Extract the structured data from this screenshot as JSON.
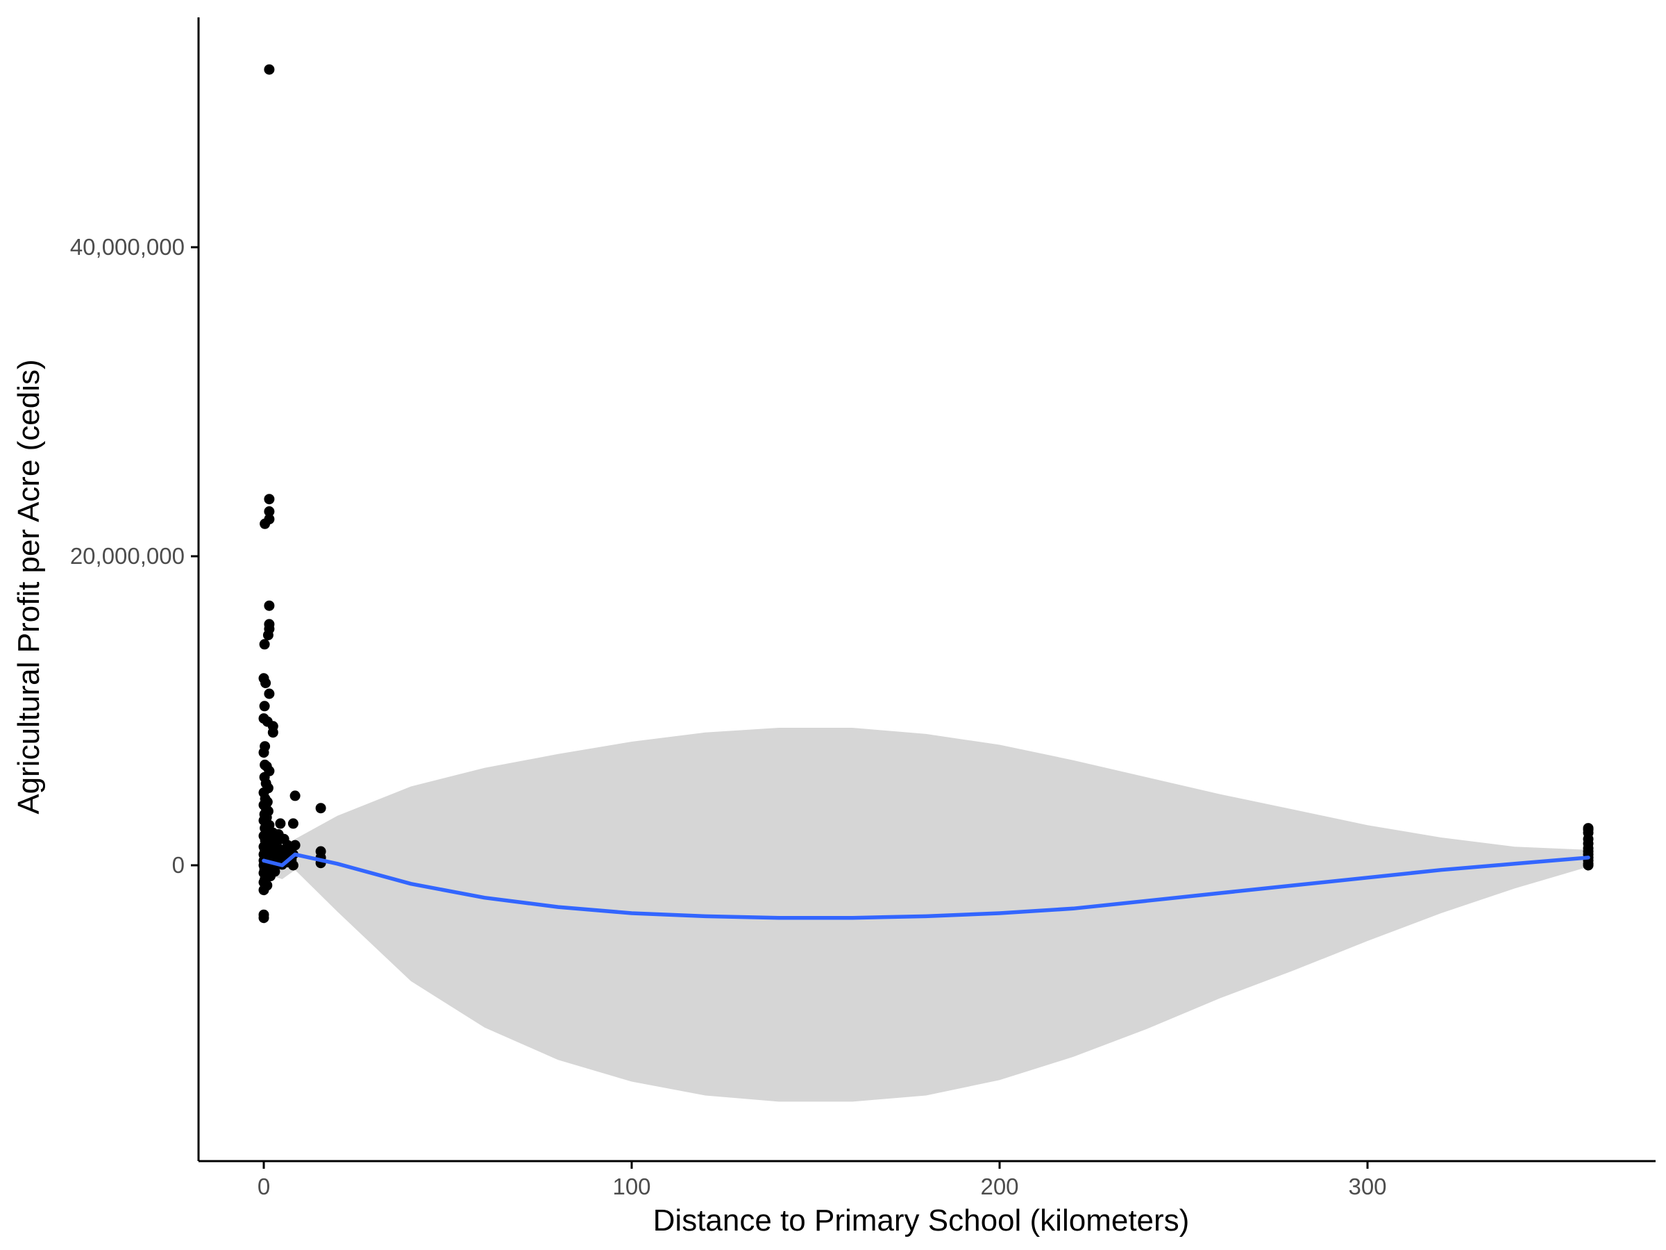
{
  "chart_data": {
    "type": "scatter",
    "title": "",
    "xlabel": "Distance to Primary School (kilometers)",
    "ylabel": "Agricultural Profit per Acre (cedis)",
    "xlim": [
      -18,
      378
    ],
    "ylim": [
      -18000000,
      55000000
    ],
    "x_ticks": [
      {
        "value": 0,
        "label": "0"
      },
      {
        "value": 100,
        "label": "100"
      },
      {
        "value": 200,
        "label": "200"
      },
      {
        "value": 300,
        "label": "300"
      }
    ],
    "y_ticks": [
      {
        "value": 0,
        "label": "0"
      },
      {
        "value": 20000000,
        "label": "20,000,000"
      },
      {
        "value": 40000000,
        "label": "40,000,000"
      }
    ],
    "grid": false,
    "legend": "none",
    "colors": {
      "points": "#000000",
      "smooth_line": "#3366FF",
      "ci_band": "#D6D6D6",
      "axis": "#000000",
      "tick_text": "#4d4d4d"
    },
    "points": [
      [
        1.5,
        51500000
      ],
      [
        1.5,
        23700000
      ],
      [
        1.5,
        22900000
      ],
      [
        1.5,
        22400000
      ],
      [
        0.3,
        22100000
      ],
      [
        1.5,
        16800000
      ],
      [
        1.5,
        15600000
      ],
      [
        1.5,
        15300000
      ],
      [
        1.2,
        14900000
      ],
      [
        0.2,
        14300000
      ],
      [
        0.0,
        12100000
      ],
      [
        0.5,
        11800000
      ],
      [
        1.5,
        11100000
      ],
      [
        0.2,
        10300000
      ],
      [
        0.0,
        9500000
      ],
      [
        1.0,
        9300000
      ],
      [
        2.5,
        9000000
      ],
      [
        2.5,
        8600000
      ],
      [
        0.3,
        7700000
      ],
      [
        0.0,
        7300000
      ],
      [
        0.3,
        6500000
      ],
      [
        0.8,
        6400000
      ],
      [
        1.5,
        6100000
      ],
      [
        0.2,
        5700000
      ],
      [
        0.6,
        5300000
      ],
      [
        1.2,
        5000000
      ],
      [
        0.0,
        4700000
      ],
      [
        8.5,
        4500000
      ],
      [
        0.4,
        4300000
      ],
      [
        1.0,
        4100000
      ],
      [
        0.0,
        3900000
      ],
      [
        0.6,
        3700000
      ],
      [
        15.5,
        3700000
      ],
      [
        1.2,
        3500000
      ],
      [
        0.2,
        3300000
      ],
      [
        0.8,
        3100000
      ],
      [
        0.0,
        2900000
      ],
      [
        4.5,
        2700000
      ],
      [
        8.0,
        2700000
      ],
      [
        1.5,
        2600000
      ],
      [
        0.3,
        2400000
      ],
      [
        0.7,
        2200000
      ],
      [
        2.5,
        2100000
      ],
      [
        4.0,
        2000000
      ],
      [
        0.0,
        1900000
      ],
      [
        1.2,
        1800000
      ],
      [
        3.0,
        1700000
      ],
      [
        5.5,
        1700000
      ],
      [
        0.4,
        1600000
      ],
      [
        0.9,
        1500000
      ],
      [
        2.0,
        1400000
      ],
      [
        3.5,
        1300000
      ],
      [
        6.5,
        1300000
      ],
      [
        8.5,
        1300000
      ],
      [
        0.0,
        1200000
      ],
      [
        1.5,
        1100000
      ],
      [
        2.5,
        1000000
      ],
      [
        4.5,
        1000000
      ],
      [
        7.0,
        950000
      ],
      [
        15.5,
        900000
      ],
      [
        0.3,
        900000
      ],
      [
        1.0,
        800000
      ],
      [
        3.0,
        800000
      ],
      [
        5.0,
        750000
      ],
      [
        8.0,
        700000
      ],
      [
        0.0,
        700000
      ],
      [
        1.8,
        600000
      ],
      [
        4.0,
        600000
      ],
      [
        6.0,
        550000
      ],
      [
        15.5,
        500000
      ],
      [
        0.6,
        500000
      ],
      [
        2.2,
        450000
      ],
      [
        3.5,
        400000
      ],
      [
        5.5,
        400000
      ],
      [
        7.5,
        350000
      ],
      [
        0.0,
        300000
      ],
      [
        1.2,
        300000
      ],
      [
        2.8,
        250000
      ],
      [
        4.5,
        200000
      ],
      [
        6.5,
        200000
      ],
      [
        15.5,
        150000
      ],
      [
        0.4,
        150000
      ],
      [
        2.0,
        100000
      ],
      [
        3.5,
        50000
      ],
      [
        5.0,
        50000
      ],
      [
        0.0,
        0
      ],
      [
        1.5,
        0
      ],
      [
        8.0,
        0
      ],
      [
        0.8,
        -100000
      ],
      [
        2.5,
        -150000
      ],
      [
        0.2,
        -250000
      ],
      [
        1.2,
        -350000
      ],
      [
        3.0,
        -400000
      ],
      [
        0.0,
        -500000
      ],
      [
        0.6,
        -650000
      ],
      [
        1.8,
        -700000
      ],
      [
        0.3,
        -900000
      ],
      [
        0.0,
        -1100000
      ],
      [
        0.9,
        -1300000
      ],
      [
        0.0,
        -1600000
      ],
      [
        0.0,
        -3200000
      ],
      [
        0.0,
        -3400000
      ],
      [
        360,
        2400000
      ],
      [
        360,
        2300000
      ],
      [
        360,
        2100000
      ],
      [
        360,
        1700000
      ],
      [
        360,
        1400000
      ],
      [
        360,
        1100000
      ],
      [
        360,
        900000
      ],
      [
        360,
        700000
      ],
      [
        360,
        500000
      ],
      [
        360,
        300000
      ],
      [
        360,
        100000
      ],
      [
        360,
        0
      ]
    ],
    "smooth": [
      [
        0,
        300000,
        -500000,
        1100000
      ],
      [
        5,
        0,
        -900000,
        900000
      ],
      [
        8.5,
        700000,
        -300000,
        1700000
      ],
      [
        20,
        100000,
        -3000000,
        3200000
      ],
      [
        40,
        -1200000,
        -7500000,
        5100000
      ],
      [
        60,
        -2100000,
        -10500000,
        6300000
      ],
      [
        80,
        -2700000,
        -12600000,
        7200000
      ],
      [
        100,
        -3100000,
        -14000000,
        8000000
      ],
      [
        120,
        -3300000,
        -14900000,
        8600000
      ],
      [
        140,
        -3400000,
        -15300000,
        8900000
      ],
      [
        160,
        -3400000,
        -15300000,
        8900000
      ],
      [
        180,
        -3300000,
        -14900000,
        8500000
      ],
      [
        200,
        -3100000,
        -13900000,
        7800000
      ],
      [
        220,
        -2800000,
        -12400000,
        6800000
      ],
      [
        240,
        -2300000,
        -10600000,
        5700000
      ],
      [
        260,
        -1800000,
        -8600000,
        4600000
      ],
      [
        280,
        -1300000,
        -6800000,
        3600000
      ],
      [
        300,
        -800000,
        -4900000,
        2600000
      ],
      [
        320,
        -300000,
        -3100000,
        1800000
      ],
      [
        340,
        100000,
        -1500000,
        1200000
      ],
      [
        360,
        500000,
        -100000,
        1000000
      ]
    ]
  }
}
